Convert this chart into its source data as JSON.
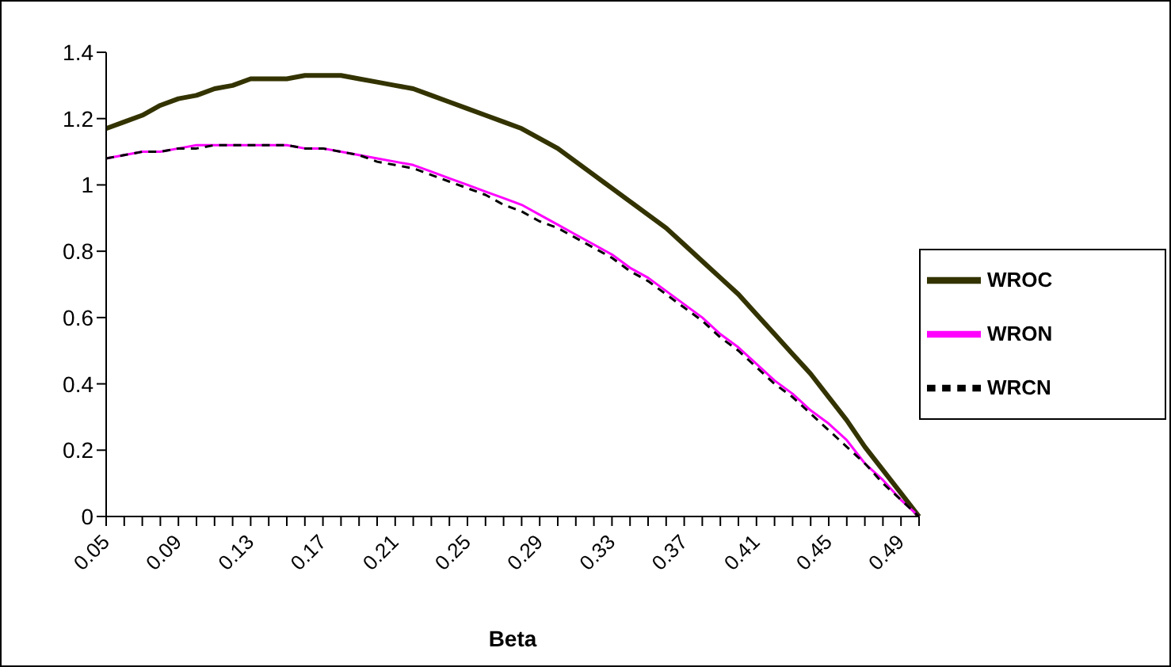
{
  "chart_data": {
    "type": "line",
    "xlabel": "Beta",
    "categories": [
      "0.05",
      null,
      null,
      null,
      "0.09",
      null,
      null,
      null,
      "0.13",
      null,
      null,
      null,
      "0.17",
      null,
      null,
      null,
      "0.21",
      null,
      null,
      null,
      "0.25",
      null,
      null,
      null,
      "0.29",
      null,
      null,
      null,
      "0.33",
      null,
      null,
      null,
      "0.37",
      null,
      null,
      null,
      "0.41",
      null,
      null,
      null,
      "0.45",
      null,
      null,
      null,
      "0.49",
      null
    ],
    "series": [
      {
        "name": "WROC",
        "color": "#333300",
        "line_style": "solid",
        "values": [
          1.17,
          1.19,
          1.21,
          1.24,
          1.26,
          1.27,
          1.29,
          1.3,
          1.32,
          1.32,
          1.32,
          1.33,
          1.33,
          1.33,
          1.32,
          1.31,
          1.3,
          1.29,
          1.27,
          1.25,
          1.23,
          1.21,
          1.19,
          1.17,
          1.14,
          1.11,
          1.07,
          1.03,
          0.99,
          0.95,
          0.91,
          0.87,
          0.82,
          0.77,
          0.72,
          0.67,
          0.61,
          0.55,
          0.49,
          0.43,
          0.36,
          0.29,
          0.21,
          0.14,
          0.07,
          0
        ]
      },
      {
        "name": "WRON",
        "color": "#ff00ff",
        "line_style": "solid",
        "values": [
          1.08,
          1.09,
          1.1,
          1.1,
          1.11,
          1.12,
          1.12,
          1.12,
          1.12,
          1.12,
          1.12,
          1.11,
          1.11,
          1.1,
          1.09,
          1.08,
          1.07,
          1.06,
          1.04,
          1.02,
          1,
          0.98,
          0.96,
          0.94,
          0.91,
          0.88,
          0.85,
          0.82,
          0.79,
          0.75,
          0.72,
          0.68,
          0.64,
          0.6,
          0.55,
          0.51,
          0.46,
          0.41,
          0.37,
          0.32,
          0.28,
          0.23,
          0.16,
          0.11,
          0.05,
          0
        ]
      },
      {
        "name": "WRCN",
        "color": "#000000",
        "line_style": "dashed",
        "values": [
          1.08,
          1.09,
          1.1,
          1.1,
          1.11,
          1.11,
          1.12,
          1.12,
          1.12,
          1.12,
          1.12,
          1.11,
          1.11,
          1.1,
          1.09,
          1.07,
          1.06,
          1.05,
          1.03,
          1.01,
          0.99,
          0.97,
          0.94,
          0.92,
          0.89,
          0.87,
          0.84,
          0.81,
          0.78,
          0.74,
          0.71,
          0.67,
          0.63,
          0.59,
          0.54,
          0.5,
          0.45,
          0.4,
          0.36,
          0.31,
          0.26,
          0.21,
          0.16,
          0.1,
          0.05,
          0
        ]
      }
    ],
    "ylim": [
      0,
      1.4
    ],
    "yticks": [
      0,
      0.2,
      0.4,
      0.6,
      0.8,
      1,
      1.2,
      1.4
    ],
    "grid": false,
    "legend": "right",
    "marker": "none"
  }
}
